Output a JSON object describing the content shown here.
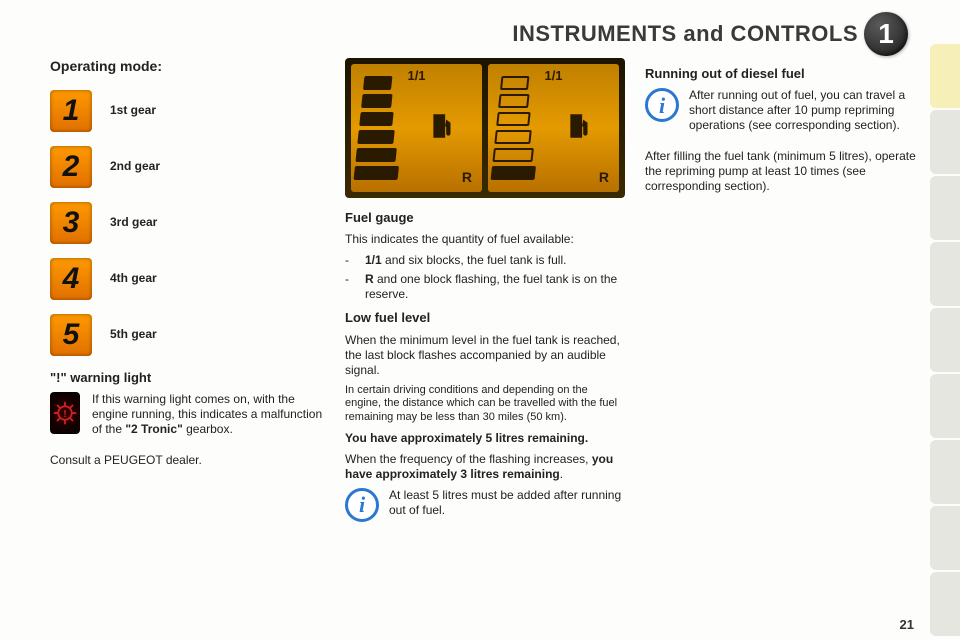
{
  "header": {
    "title": "INSTRUMENTS and CONTROLS",
    "badge": "1"
  },
  "page_number": "21",
  "col1": {
    "heading": "Operating mode:",
    "gears": [
      {
        "digit": "1",
        "label": "1st gear"
      },
      {
        "digit": "2",
        "label": "2nd gear"
      },
      {
        "digit": "3",
        "label": "3rd gear"
      },
      {
        "digit": "4",
        "label": "4th gear"
      },
      {
        "digit": "5",
        "label": "5th gear"
      }
    ],
    "warn_heading": "\"!\" warning light",
    "warn_text_a": "If this warning light comes on, with the engine running, this indicates a malfunction of the ",
    "warn_text_b": "\"2 Tronic\"",
    "warn_text_c": " gearbox.",
    "consult": "Consult a PEUGEOT dealer."
  },
  "col2": {
    "gauge": {
      "label_top": "1/1",
      "label_r": "R",
      "left_bars": [
        28,
        30,
        33,
        36,
        40,
        44
      ],
      "right_bars": [
        28,
        30,
        33,
        36,
        40,
        44
      ],
      "left_fill": [
        true,
        true,
        true,
        true,
        true,
        true
      ],
      "right_fill": [
        false,
        false,
        false,
        false,
        false,
        true
      ],
      "colors": {
        "panel_bg": "#1d1400",
        "gauge_bg": "#e49a00",
        "ink": "#2a1a00"
      }
    },
    "fuel_heading": "Fuel gauge",
    "fuel_intro": "This indicates the quantity of fuel available:",
    "bullets": [
      {
        "b": "1/1",
        "t": " and six blocks, the fuel tank is full."
      },
      {
        "b": "R",
        "t": " and one block flashing, the fuel tank is on the reserve."
      }
    ],
    "low_heading": "Low fuel level",
    "low_p1": "When the minimum level in the fuel tank is reached, the last block flashes accompanied by an audible signal.",
    "low_p2": "In certain driving conditions and depending on the engine, the distance which can be travelled with the fuel remaining may be less than 30 miles (50 km).",
    "low_b1": "You have approximately 5 litres remaining.",
    "low_p3a": "When the frequency of the flashing increases, ",
    "low_p3b": "you have approximately 3 litres remaining",
    "low_p3c": ".",
    "info": "At least 5 litres must be added after running out of fuel."
  },
  "col3": {
    "heading": "Running out of diesel fuel",
    "info": "After running out of fuel, you can travel a short distance after 10 pump repriming operations (see corresponding section).",
    "p1": "After filling the fuel tank (minimum 5 litres), operate the repriming pump at least 10 times (see corresponding section)."
  },
  "icon_color": "#e88000",
  "warn_color": "#d02020",
  "info_blue": "#2a78d0"
}
